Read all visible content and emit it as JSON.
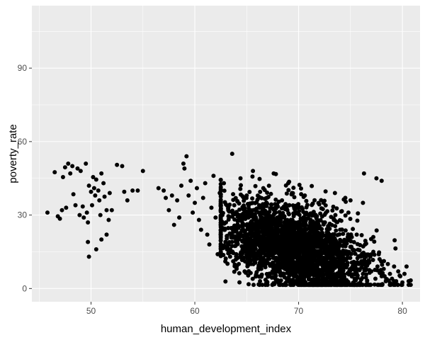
{
  "chart_data": {
    "type": "scatter",
    "title": "",
    "xlabel": "human_development_index",
    "ylabel": "poverty_rate",
    "xlim": [
      44.3,
      81.7
    ],
    "ylim": [
      -5.4,
      115.5
    ],
    "x_ticks": [
      50,
      60,
      70,
      80
    ],
    "y_ticks": [
      0,
      30,
      60,
      90
    ],
    "x_minor": [
      45,
      55,
      65,
      75
    ],
    "y_minor": [
      15,
      45,
      75,
      105
    ],
    "grid": true,
    "legend": "none",
    "colors": {
      "panel": "#ebebeb",
      "grid": "#ffffff",
      "point": "#000000",
      "tick": "#4d4d4d",
      "axis_title": "#000000"
    },
    "points": [
      [
        45.8,
        31
      ],
      [
        46.5,
        47.5
      ],
      [
        46.8,
        29.5
      ],
      [
        47,
        28.5
      ],
      [
        47.2,
        32
      ],
      [
        47.3,
        45.5
      ],
      [
        47.5,
        49.5
      ],
      [
        47.6,
        33
      ],
      [
        47.8,
        51
      ],
      [
        48,
        47
      ],
      [
        48.2,
        50
      ],
      [
        48.3,
        38.5
      ],
      [
        48.5,
        34
      ],
      [
        48.7,
        49
      ],
      [
        48.9,
        30
      ],
      [
        49,
        48
      ],
      [
        49.2,
        33.5
      ],
      [
        49.3,
        29
      ],
      [
        49.5,
        51
      ],
      [
        49.6,
        31
      ],
      [
        49.7,
        27
      ],
      [
        49.8,
        42
      ],
      [
        50,
        39.5
      ],
      [
        50.1,
        34
      ],
      [
        50.2,
        45.5
      ],
      [
        50.3,
        41
      ],
      [
        50.4,
        38
      ],
      [
        50.5,
        44.5
      ],
      [
        50.7,
        40
      ],
      [
        50.8,
        36
      ],
      [
        50.9,
        30
      ],
      [
        51,
        47
      ],
      [
        51.2,
        43
      ],
      [
        51.3,
        37.5
      ],
      [
        51.5,
        32
      ],
      [
        51.7,
        28
      ],
      [
        51.8,
        39
      ],
      [
        49.7,
        19
      ],
      [
        49.8,
        13
      ],
      [
        50.5,
        16
      ],
      [
        51,
        20
      ],
      [
        51.5,
        22
      ],
      [
        52.5,
        50.5
      ],
      [
        53,
        50
      ],
      [
        53.2,
        39.5
      ],
      [
        53.5,
        36
      ],
      [
        54,
        40
      ],
      [
        54.5,
        40
      ],
      [
        55,
        48
      ],
      [
        52,
        32
      ],
      [
        56.5,
        41
      ],
      [
        57,
        40
      ],
      [
        57.2,
        37
      ],
      [
        57.5,
        32
      ],
      [
        57.8,
        38
      ],
      [
        58,
        26
      ],
      [
        58.3,
        36
      ],
      [
        58.5,
        29
      ],
      [
        58.7,
        42
      ],
      [
        58.9,
        51
      ],
      [
        59,
        49
      ],
      [
        59.2,
        54
      ],
      [
        59.4,
        38
      ],
      [
        59.6,
        44
      ],
      [
        59.8,
        31
      ],
      [
        60,
        35
      ],
      [
        60.2,
        41
      ],
      [
        60.4,
        28
      ],
      [
        60.6,
        24
      ],
      [
        60.8,
        37
      ],
      [
        61,
        43
      ],
      [
        61.2,
        22
      ],
      [
        61.4,
        18
      ],
      [
        61.6,
        33
      ],
      [
        61.8,
        46
      ],
      [
        62,
        29
      ],
      [
        62.2,
        14
      ],
      [
        62.4,
        39
      ],
      [
        62.6,
        25
      ],
      [
        62.8,
        43
      ],
      [
        63,
        27
      ],
      [
        63.2,
        18
      ],
      [
        63.4,
        13
      ],
      [
        63.6,
        55
      ],
      [
        63.8,
        34
      ],
      [
        64,
        9
      ],
      [
        64.2,
        21
      ],
      [
        64.4,
        45
      ],
      [
        64.6,
        16
      ],
      [
        64.8,
        7
      ],
      [
        65,
        38
      ],
      [
        65.2,
        12
      ],
      [
        65.4,
        30
      ],
      [
        65.6,
        48
      ],
      [
        65.8,
        22
      ],
      [
        66,
        14
      ],
      [
        66.2,
        34
      ],
      [
        66.4,
        8
      ],
      [
        66.6,
        41
      ],
      [
        66.8,
        20
      ],
      [
        67,
        27
      ],
      [
        67.2,
        5
      ],
      [
        67.4,
        17
      ],
      [
        67.6,
        47
      ],
      [
        67.8,
        31
      ],
      [
        68,
        11
      ],
      [
        68.2,
        23
      ],
      [
        68.4,
        36
      ],
      [
        68.6,
        6
      ],
      [
        68.8,
        19
      ],
      [
        69,
        43
      ],
      [
        69.2,
        14
      ],
      [
        69.4,
        28
      ],
      [
        69.6,
        9
      ],
      [
        69.8,
        33
      ],
      [
        70,
        18
      ],
      [
        70.2,
        24
      ],
      [
        70.4,
        4
      ],
      [
        70.6,
        38
      ],
      [
        70.8,
        12
      ],
      [
        71,
        21
      ],
      [
        71.2,
        8
      ],
      [
        71.4,
        31
      ],
      [
        71.6,
        15
      ],
      [
        71.8,
        26
      ],
      [
        72,
        6
      ],
      [
        72.2,
        19
      ],
      [
        72.4,
        35
      ],
      [
        72.6,
        11
      ],
      [
        72.8,
        22
      ],
      [
        73,
        3
      ],
      [
        73.2,
        17
      ],
      [
        73.4,
        28
      ],
      [
        73.6,
        9
      ],
      [
        73.8,
        14
      ],
      [
        74,
        24
      ],
      [
        74.2,
        5
      ],
      [
        74.4,
        19
      ],
      [
        74.6,
        12
      ],
      [
        74.8,
        31
      ],
      [
        75,
        8
      ],
      [
        75.2,
        16
      ],
      [
        75.4,
        4
      ],
      [
        75.6,
        22
      ],
      [
        75.8,
        10
      ],
      [
        76,
        13
      ],
      [
        76.2,
        6
      ],
      [
        76.4,
        18
      ],
      [
        76.6,
        3
      ],
      [
        76.8,
        11
      ],
      [
        77,
        7
      ],
      [
        77.2,
        15
      ],
      [
        77.4,
        4
      ],
      [
        77.6,
        9
      ],
      [
        77.8,
        12
      ],
      [
        78,
        5
      ],
      [
        78.2,
        8
      ],
      [
        78.4,
        3
      ],
      [
        78.6,
        10
      ],
      [
        78.8,
        6
      ],
      [
        79,
        4
      ],
      [
        79.2,
        9
      ],
      [
        79.4,
        3
      ],
      [
        79.6,
        7
      ],
      [
        79.8,
        5
      ],
      [
        80,
        2.5
      ],
      [
        80.2,
        6
      ],
      [
        80.4,
        9
      ],
      [
        80.6,
        3
      ],
      [
        76.3,
        47
      ],
      [
        77.5,
        45
      ],
      [
        78,
        44
      ],
      [
        76.2,
        35
      ],
      [
        75,
        36
      ],
      [
        74.5,
        37
      ],
      [
        73.5,
        39
      ]
    ],
    "cluster": {
      "count": 2600,
      "seed": 12345,
      "x_mean": 69.5,
      "x_sd": 3.6,
      "x_range": [
        62.5,
        80.8
      ],
      "y_at_x_start": 26,
      "y_slope": -1.35,
      "y_sd": 9,
      "y_range": [
        1.5,
        52
      ]
    }
  }
}
